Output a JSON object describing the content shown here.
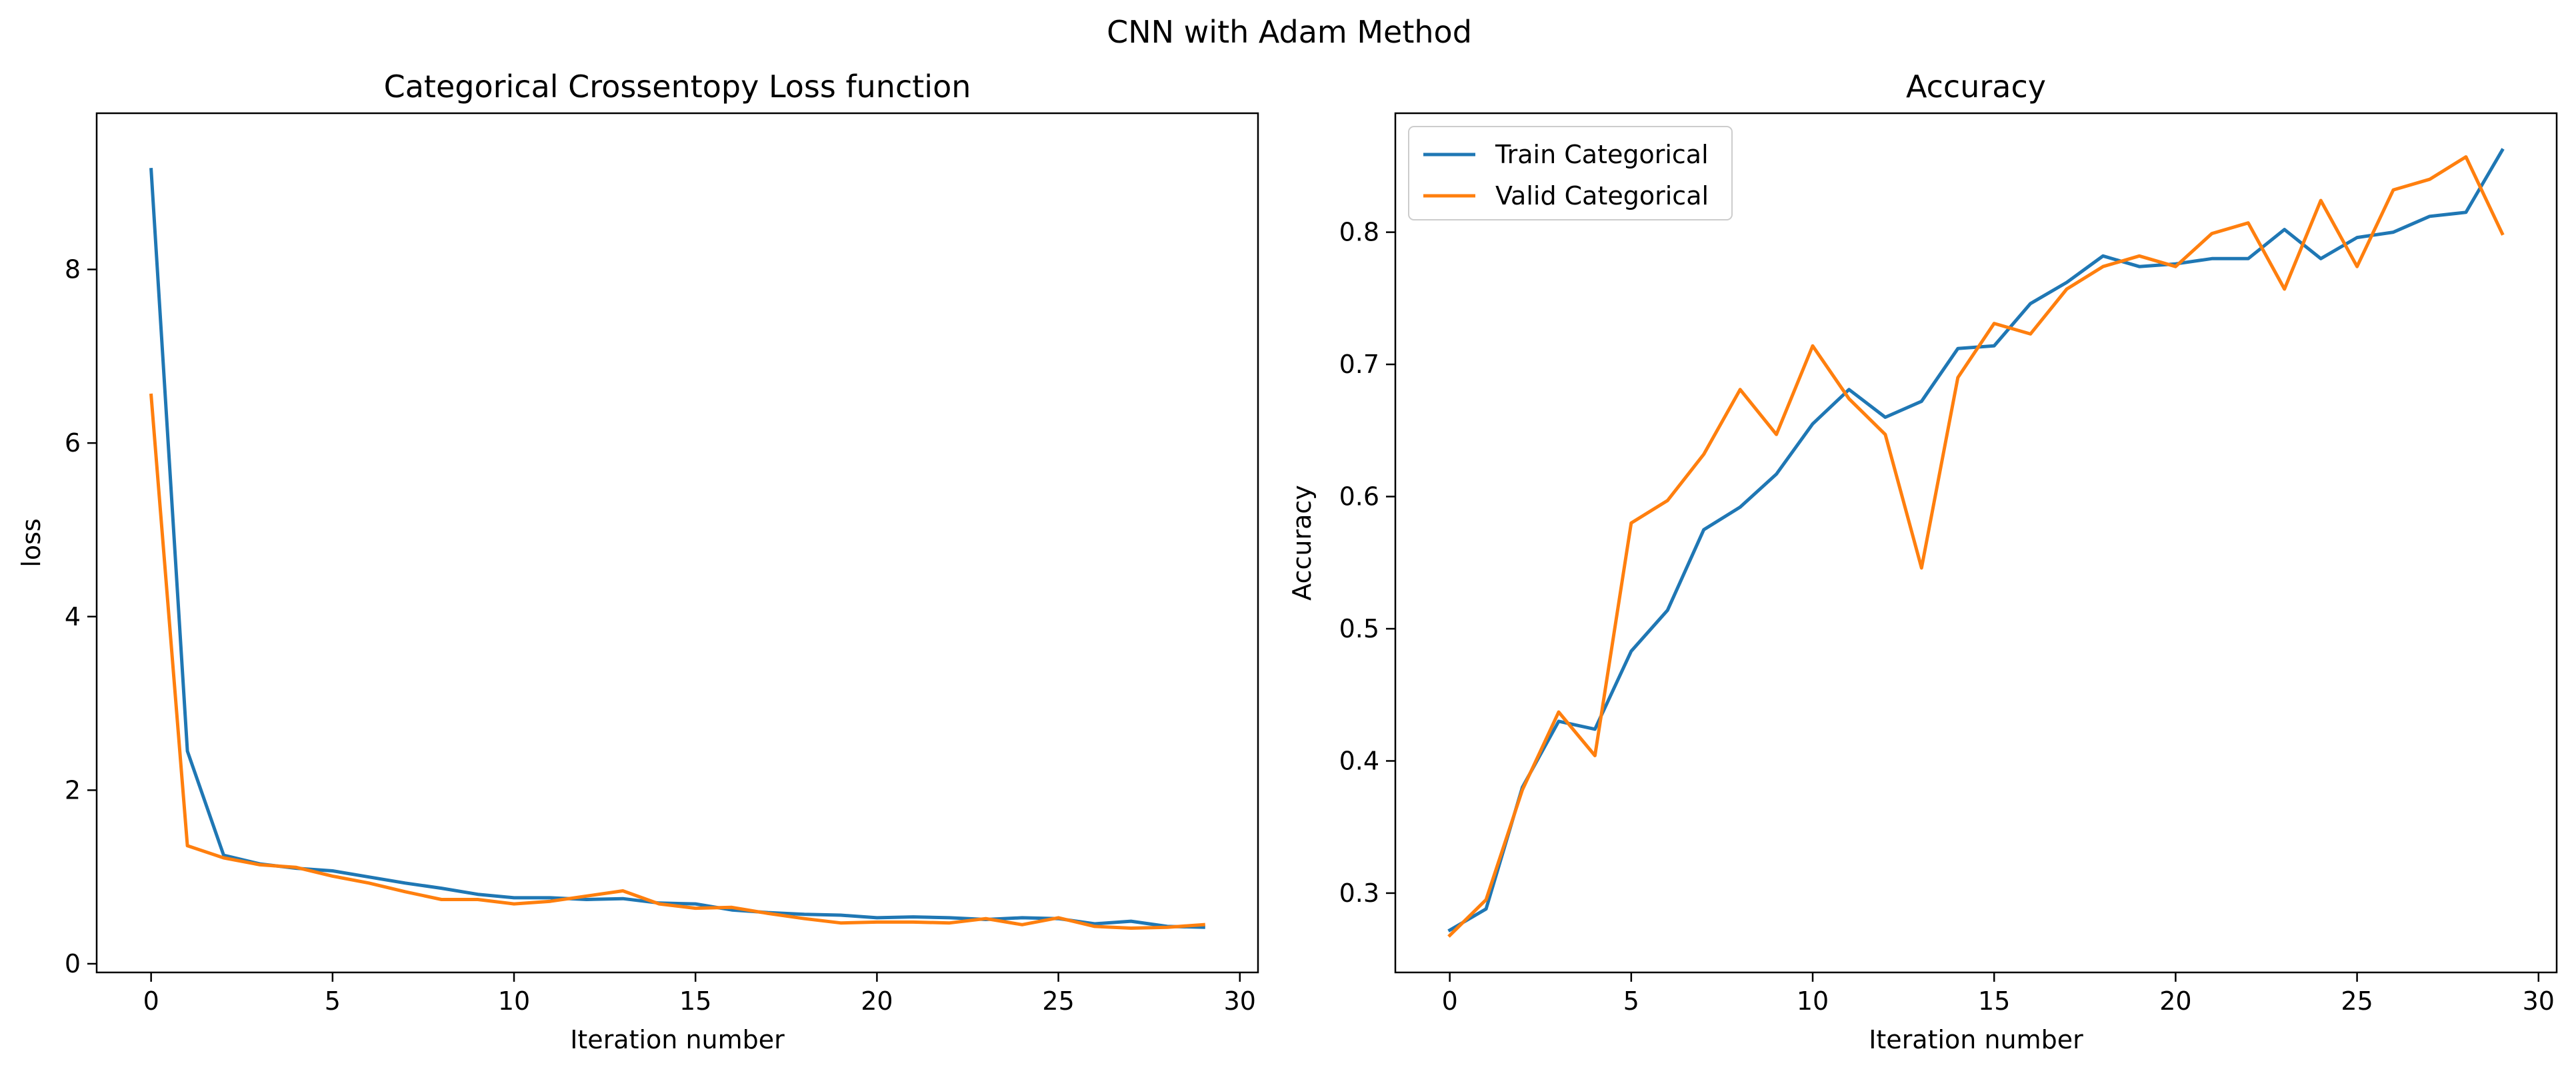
{
  "figure": {
    "suptitle": "CNN with Adam Method"
  },
  "colors": {
    "train": "#1f77b4",
    "valid": "#ff7f0e",
    "axis": "#000000",
    "background": "#ffffff"
  },
  "chart_data": [
    {
      "type": "line",
      "title": "Categorical Crossentopy Loss function",
      "xlabel": "Iteration number",
      "ylabel": "loss",
      "xlim": [
        -1.5,
        30.5
      ],
      "ylim": [
        -0.1,
        9.8
      ],
      "xticks": [
        0,
        5,
        10,
        15,
        20,
        25,
        30
      ],
      "yticks": [
        0,
        2,
        4,
        6,
        8
      ],
      "grid": false,
      "legend": null,
      "x": [
        0,
        1,
        2,
        3,
        4,
        5,
        6,
        7,
        8,
        9,
        10,
        11,
        12,
        13,
        14,
        15,
        16,
        17,
        18,
        19,
        20,
        21,
        22,
        23,
        24,
        25,
        26,
        27,
        28,
        29
      ],
      "series": [
        {
          "key": "train",
          "values": [
            9.15,
            2.45,
            1.25,
            1.15,
            1.1,
            1.07,
            1.0,
            0.93,
            0.87,
            0.8,
            0.76,
            0.76,
            0.74,
            0.75,
            0.7,
            0.69,
            0.62,
            0.59,
            0.57,
            0.56,
            0.53,
            0.54,
            0.53,
            0.51,
            0.53,
            0.52,
            0.46,
            0.49,
            0.43,
            0.42
          ]
        },
        {
          "key": "valid",
          "values": [
            6.55,
            1.36,
            1.22,
            1.14,
            1.11,
            1.01,
            0.93,
            0.83,
            0.74,
            0.74,
            0.69,
            0.72,
            0.78,
            0.84,
            0.69,
            0.64,
            0.65,
            0.58,
            0.52,
            0.47,
            0.48,
            0.48,
            0.47,
            0.52,
            0.45,
            0.53,
            0.43,
            0.41,
            0.42,
            0.45
          ]
        }
      ]
    },
    {
      "type": "line",
      "title": "Accuracy",
      "xlabel": "Iteration number",
      "ylabel": "Accuracy",
      "xlim": [
        -1.5,
        30.5
      ],
      "ylim": [
        0.24,
        0.89
      ],
      "xticks": [
        0,
        5,
        10,
        15,
        20,
        25,
        30
      ],
      "yticks": [
        0.3,
        0.4,
        0.5,
        0.6,
        0.7,
        0.8
      ],
      "grid": false,
      "legend": "upper-left",
      "x": [
        0,
        1,
        2,
        3,
        4,
        5,
        6,
        7,
        8,
        9,
        10,
        11,
        12,
        13,
        14,
        15,
        16,
        17,
        18,
        19,
        20,
        21,
        22,
        23,
        24,
        25,
        26,
        27,
        28,
        29
      ],
      "series": [
        {
          "key": "train",
          "name": "Train Categorical",
          "values": [
            0.272,
            0.288,
            0.38,
            0.43,
            0.424,
            0.483,
            0.514,
            0.575,
            0.592,
            0.617,
            0.655,
            0.681,
            0.66,
            0.672,
            0.712,
            0.714,
            0.746,
            0.762,
            0.782,
            0.774,
            0.776,
            0.78,
            0.78,
            0.802,
            0.78,
            0.796,
            0.8,
            0.812,
            0.815,
            0.862
          ]
        },
        {
          "key": "valid",
          "name": "Valid Categorical",
          "values": [
            0.268,
            0.295,
            0.378,
            0.437,
            0.404,
            0.58,
            0.597,
            0.632,
            0.681,
            0.647,
            0.714,
            0.674,
            0.647,
            0.546,
            0.69,
            0.731,
            0.723,
            0.757,
            0.774,
            0.782,
            0.774,
            0.799,
            0.807,
            0.757,
            0.824,
            0.774,
            0.832,
            0.84,
            0.857,
            0.799
          ]
        }
      ]
    }
  ]
}
